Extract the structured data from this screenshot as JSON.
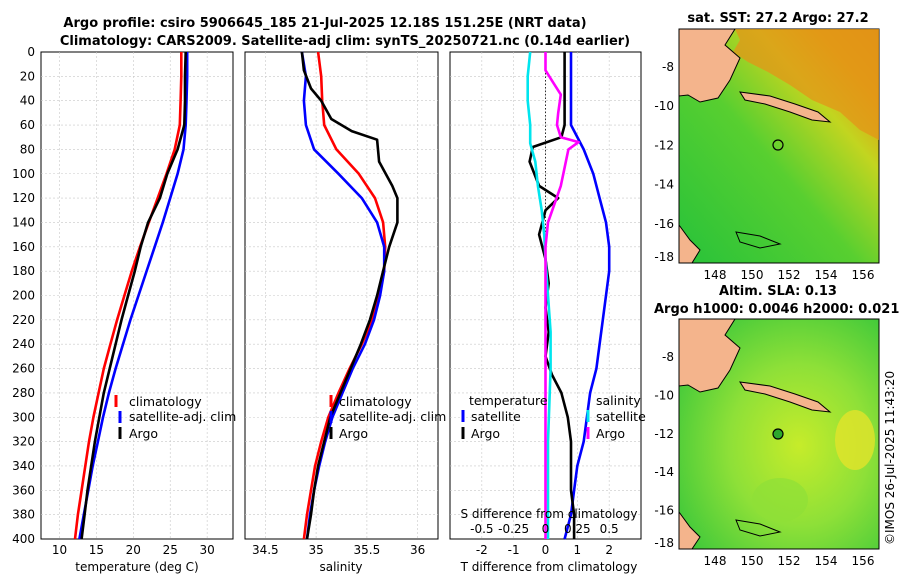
{
  "title": {
    "line1": "Argo profile: csiro 5906645_185 21-Jul-2025 12.18S 151.25E (NRT data)",
    "line2": "Climatology: CARS2009. Satellite-adj clim: synTS_20250721.nc (0.14d earlier)"
  },
  "copyright": "©IMOS 26-Jul-2025 11:43:20",
  "colors": {
    "climatology": "#ff0000",
    "satellite": "#0000ff",
    "argo": "#000000",
    "sat_salinity": "#00e5ee",
    "argo_salinity": "#ff00ff"
  },
  "chart_data": [
    {
      "type": "line",
      "name": "temperature-panel",
      "xlabel": "temperature (deg C)",
      "ylabel": "",
      "xlim": [
        7.5,
        33.5
      ],
      "ylim": [
        400,
        0
      ],
      "x_ticks": [
        10,
        15,
        20,
        25,
        30
      ],
      "y_ticks": [
        0,
        20,
        40,
        60,
        80,
        100,
        120,
        140,
        160,
        180,
        200,
        220,
        240,
        260,
        280,
        300,
        320,
        340,
        360,
        380,
        400
      ],
      "legend": {
        "position": "bottom-right",
        "entries": [
          "climatology",
          "satellite-adj. clim",
          "Argo"
        ]
      },
      "series": [
        {
          "name": "climatology",
          "color": "#ff0000",
          "points": [
            [
              26.5,
              0
            ],
            [
              26.5,
              20
            ],
            [
              26.4,
              40
            ],
            [
              26.3,
              60
            ],
            [
              25.6,
              80
            ],
            [
              24.5,
              100
            ],
            [
              23.3,
              120
            ],
            [
              22.1,
              140
            ],
            [
              20.9,
              160
            ],
            [
              19.8,
              180
            ],
            [
              18.8,
              200
            ],
            [
              17.8,
              220
            ],
            [
              16.9,
              240
            ],
            [
              16.0,
              260
            ],
            [
              15.3,
              280
            ],
            [
              14.6,
              300
            ],
            [
              14.0,
              320
            ],
            [
              13.5,
              340
            ],
            [
              13.0,
              360
            ],
            [
              12.5,
              380
            ],
            [
              12.1,
              400
            ]
          ]
        },
        {
          "name": "satellite-adj. clim",
          "color": "#0000ff",
          "points": [
            [
              27.3,
              0
            ],
            [
              27.3,
              20
            ],
            [
              27.2,
              40
            ],
            [
              27.1,
              60
            ],
            [
              26.8,
              80
            ],
            [
              26.0,
              100
            ],
            [
              25.0,
              120
            ],
            [
              24.0,
              140
            ],
            [
              22.9,
              160
            ],
            [
              21.8,
              180
            ],
            [
              20.7,
              200
            ],
            [
              19.6,
              220
            ],
            [
              18.6,
              240
            ],
            [
              17.6,
              260
            ],
            [
              16.7,
              280
            ],
            [
              15.9,
              300
            ],
            [
              15.2,
              320
            ],
            [
              14.5,
              340
            ],
            [
              13.9,
              360
            ],
            [
              13.3,
              380
            ],
            [
              12.7,
              400
            ]
          ]
        },
        {
          "name": "Argo",
          "color": "#000000",
          "points": [
            [
              27.1,
              0
            ],
            [
              27.0,
              20
            ],
            [
              27.0,
              40
            ],
            [
              26.9,
              60
            ],
            [
              26.0,
              80
            ],
            [
              24.6,
              100
            ],
            [
              23.6,
              120
            ],
            [
              22.0,
              140
            ],
            [
              21.0,
              160
            ],
            [
              20.2,
              180
            ],
            [
              19.3,
              200
            ],
            [
              18.4,
              220
            ],
            [
              17.6,
              240
            ],
            [
              16.8,
              260
            ],
            [
              16.0,
              280
            ],
            [
              15.4,
              300
            ],
            [
              14.8,
              320
            ],
            [
              14.3,
              340
            ],
            [
              13.8,
              360
            ],
            [
              13.4,
              380
            ],
            [
              13.0,
              400
            ]
          ]
        }
      ]
    },
    {
      "type": "line",
      "name": "salinity-panel",
      "xlabel": "salinity",
      "xlim": [
        34.3,
        36.2
      ],
      "ylim": [
        400,
        0
      ],
      "x_ticks": [
        34.5,
        35,
        35.5,
        36
      ],
      "legend": {
        "position": "bottom-right",
        "entries": [
          "climatology",
          "satellite-adj. clim",
          "Argo"
        ]
      },
      "series": [
        {
          "name": "climatology",
          "color": "#ff0000",
          "points": [
            [
              35.02,
              0
            ],
            [
              35.05,
              20
            ],
            [
              35.06,
              40
            ],
            [
              35.08,
              60
            ],
            [
              35.2,
              80
            ],
            [
              35.42,
              100
            ],
            [
              35.58,
              120
            ],
            [
              35.66,
              140
            ],
            [
              35.68,
              160
            ],
            [
              35.67,
              180
            ],
            [
              35.62,
              200
            ],
            [
              35.55,
              220
            ],
            [
              35.45,
              240
            ],
            [
              35.33,
              260
            ],
            [
              35.22,
              280
            ],
            [
              35.12,
              300
            ],
            [
              35.05,
              320
            ],
            [
              34.99,
              340
            ],
            [
              34.95,
              360
            ],
            [
              34.91,
              380
            ],
            [
              34.88,
              400
            ]
          ]
        },
        {
          "name": "satellite-adj. clim",
          "color": "#0000ff",
          "points": [
            [
              34.86,
              0
            ],
            [
              34.9,
              20
            ],
            [
              34.88,
              40
            ],
            [
              34.9,
              60
            ],
            [
              34.98,
              80
            ],
            [
              35.22,
              100
            ],
            [
              35.45,
              120
            ],
            [
              35.6,
              140
            ],
            [
              35.67,
              160
            ],
            [
              35.67,
              180
            ],
            [
              35.63,
              200
            ],
            [
              35.57,
              220
            ],
            [
              35.48,
              240
            ],
            [
              35.36,
              260
            ],
            [
              35.26,
              280
            ],
            [
              35.16,
              300
            ],
            [
              35.09,
              320
            ],
            [
              35.03,
              340
            ],
            [
              34.98,
              360
            ],
            [
              34.94,
              380
            ],
            [
              34.91,
              400
            ]
          ]
        },
        {
          "name": "Argo",
          "color": "#000000",
          "points": [
            [
              34.86,
              0
            ],
            [
              34.88,
              15
            ],
            [
              34.95,
              30
            ],
            [
              35.05,
              40
            ],
            [
              35.15,
              55
            ],
            [
              35.35,
              65
            ],
            [
              35.6,
              72
            ],
            [
              35.62,
              90
            ],
            [
              35.75,
              110
            ],
            [
              35.8,
              120
            ],
            [
              35.8,
              140
            ],
            [
              35.72,
              160
            ],
            [
              35.66,
              180
            ],
            [
              35.6,
              200
            ],
            [
              35.53,
              220
            ],
            [
              35.44,
              240
            ],
            [
              35.34,
              260
            ],
            [
              35.24,
              280
            ],
            [
              35.14,
              300
            ],
            [
              35.08,
              320
            ],
            [
              35.02,
              340
            ],
            [
              34.98,
              360
            ],
            [
              34.95,
              380
            ],
            [
              34.91,
              400
            ]
          ]
        }
      ]
    },
    {
      "type": "line",
      "name": "difference-panel",
      "xlabel": "T difference from climatology",
      "top_xlabel": "S difference from climatology",
      "xlim": [
        -3,
        3
      ],
      "s_axis_scale": [
        -0.75,
        0.75
      ],
      "ylim": [
        400,
        0
      ],
      "x_ticks": [
        -2,
        -1,
        0,
        1,
        2
      ],
      "top_ticks": [
        "-0.5",
        "-0.25",
        "0",
        "0.25",
        "0.5"
      ],
      "top_tick_values": [
        -0.5,
        -0.25,
        0,
        0.25,
        0.5
      ],
      "legend": {
        "left_title": "temperature",
        "left": [
          "satellite",
          "Argo"
        ],
        "right_title": "salinity",
        "right": [
          "satellite",
          "Argo"
        ]
      },
      "series": [
        {
          "name": "temperature satellite",
          "color": "#0000ff",
          "points": [
            [
              0.8,
              0
            ],
            [
              0.8,
              20
            ],
            [
              0.8,
              40
            ],
            [
              0.8,
              60
            ],
            [
              1.2,
              80
            ],
            [
              1.5,
              100
            ],
            [
              1.7,
              120
            ],
            [
              1.9,
              140
            ],
            [
              2.0,
              160
            ],
            [
              2.0,
              180
            ],
            [
              1.9,
              200
            ],
            [
              1.8,
              220
            ],
            [
              1.7,
              240
            ],
            [
              1.6,
              260
            ],
            [
              1.4,
              280
            ],
            [
              1.3,
              300
            ],
            [
              1.2,
              320
            ],
            [
              1.0,
              340
            ],
            [
              0.9,
              360
            ],
            [
              0.8,
              380
            ],
            [
              0.6,
              400
            ]
          ]
        },
        {
          "name": "temperature Argo",
          "color": "#000000",
          "points": [
            [
              0.6,
              0
            ],
            [
              0.6,
              20
            ],
            [
              0.6,
              40
            ],
            [
              0.6,
              60
            ],
            [
              0.5,
              70
            ],
            [
              -0.4,
              78
            ],
            [
              -0.5,
              90
            ],
            [
              -0.2,
              110
            ],
            [
              0.4,
              120
            ],
            [
              0.0,
              130
            ],
            [
              -0.2,
              150
            ],
            [
              0.0,
              170
            ],
            [
              0.1,
              190
            ],
            [
              0.0,
              210
            ],
            [
              0.1,
              230
            ],
            [
              0.0,
              250
            ],
            [
              0.2,
              265
            ],
            [
              0.5,
              280
            ],
            [
              0.7,
              300
            ],
            [
              0.8,
              320
            ],
            [
              0.8,
              340
            ],
            [
              0.8,
              360
            ],
            [
              0.9,
              380
            ],
            [
              0.9,
              400
            ]
          ]
        },
        {
          "name": "salinity satellite",
          "color": "#00e5ee",
          "points": [
            [
              -0.12,
              0
            ],
            [
              -0.14,
              20
            ],
            [
              -0.14,
              40
            ],
            [
              -0.12,
              60
            ],
            [
              -0.12,
              75
            ],
            [
              -0.08,
              90
            ],
            [
              -0.06,
              110
            ],
            [
              -0.03,
              130
            ],
            [
              -0.01,
              150
            ],
            [
              0.0,
              170
            ],
            [
              0.02,
              200
            ],
            [
              0.04,
              230
            ],
            [
              0.04,
              260
            ],
            [
              0.03,
              290
            ],
            [
              0.02,
              320
            ],
            [
              0.02,
              350
            ],
            [
              0.02,
              380
            ],
            [
              0.02,
              400
            ]
          ]
        },
        {
          "name": "salinity Argo",
          "color": "#ff00ff",
          "points": [
            [
              0.0,
              0
            ],
            [
              0.0,
              15
            ],
            [
              0.06,
              25
            ],
            [
              0.12,
              35
            ],
            [
              0.1,
              50
            ],
            [
              0.09,
              60
            ],
            [
              0.12,
              70
            ],
            [
              0.26,
              74
            ],
            [
              0.18,
              80
            ],
            [
              0.15,
              95
            ],
            [
              0.12,
              110
            ],
            [
              0.07,
              125
            ],
            [
              0.02,
              140
            ],
            [
              0.0,
              160
            ],
            [
              0.0,
              200
            ],
            [
              0.0,
              250
            ],
            [
              0.0,
              300
            ],
            [
              0.0,
              350
            ],
            [
              0.0,
              400
            ]
          ]
        }
      ]
    }
  ],
  "maps": {
    "sst": {
      "title": "sat. SST: 27.2 Argo: 27.2",
      "x_ticks": [
        "148",
        "150",
        "152",
        "154",
        "156"
      ],
      "y_ticks": [
        "-8",
        "-10",
        "-12",
        "-14",
        "-16",
        "-18"
      ]
    },
    "sla": {
      "title_line1": "Altim. SLA: 0.13",
      "title_line2": "Argo h1000: 0.0046 h2000: 0.021",
      "x_ticks": [
        "148",
        "150",
        "152",
        "154",
        "156"
      ],
      "y_ticks": [
        "-8",
        "-10",
        "-12",
        "-14",
        "-16",
        "-18"
      ]
    }
  }
}
